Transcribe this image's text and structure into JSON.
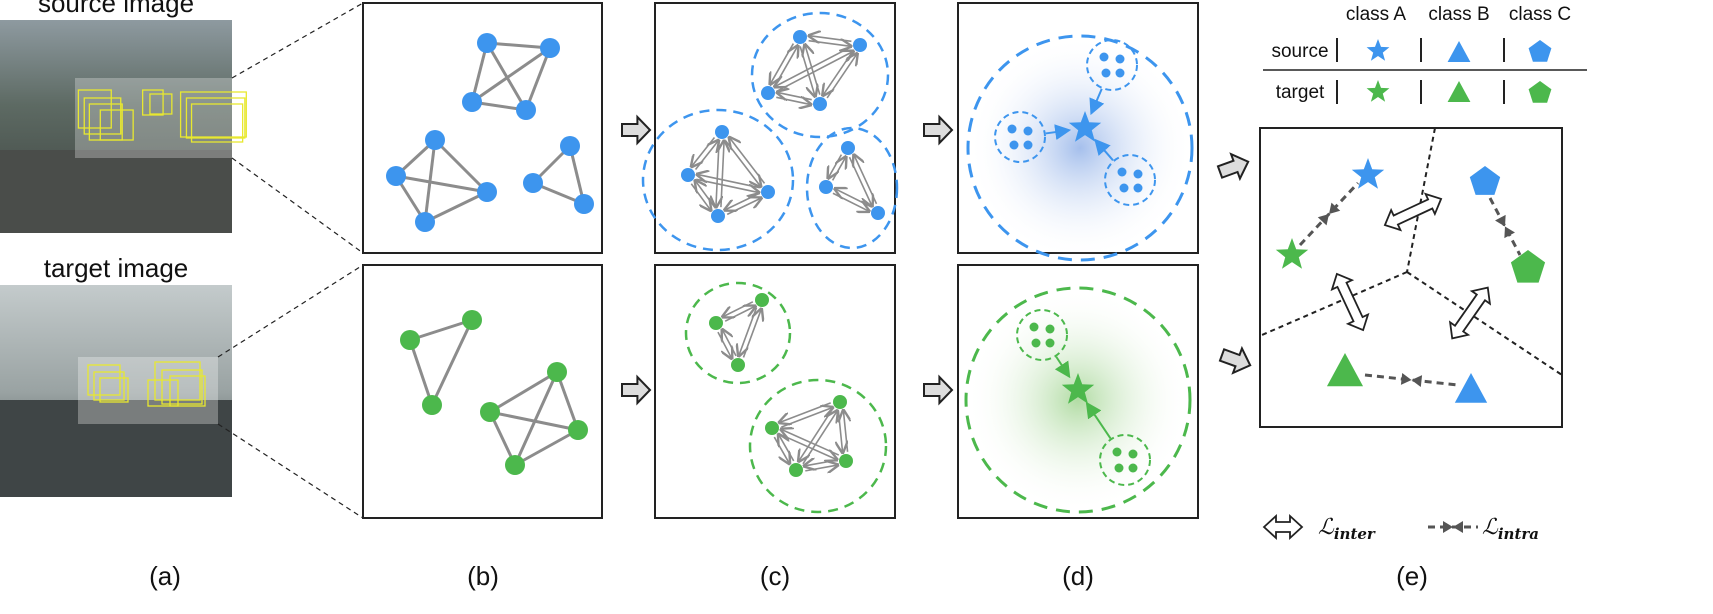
{
  "photos": {
    "source_label": "source image",
    "target_label": "target image"
  },
  "panel_labels": [
    "(a)",
    "(b)",
    "(c)",
    "(d)",
    "(e)"
  ],
  "legend": {
    "columns": [
      "class A",
      "class B",
      "class C"
    ],
    "rows": [
      "source",
      "target"
    ],
    "shapes": [
      "star",
      "triangle",
      "pentagon"
    ]
  },
  "loss_legend": {
    "inter_symbol": "ℒ",
    "inter_sub": "inter",
    "intra_symbol": "ℒ",
    "intra_sub": "intra"
  },
  "colors": {
    "source": "#3d95ee",
    "target": "#4cb84c",
    "edge": "#8c8c8c",
    "box": "#e8e830"
  }
}
